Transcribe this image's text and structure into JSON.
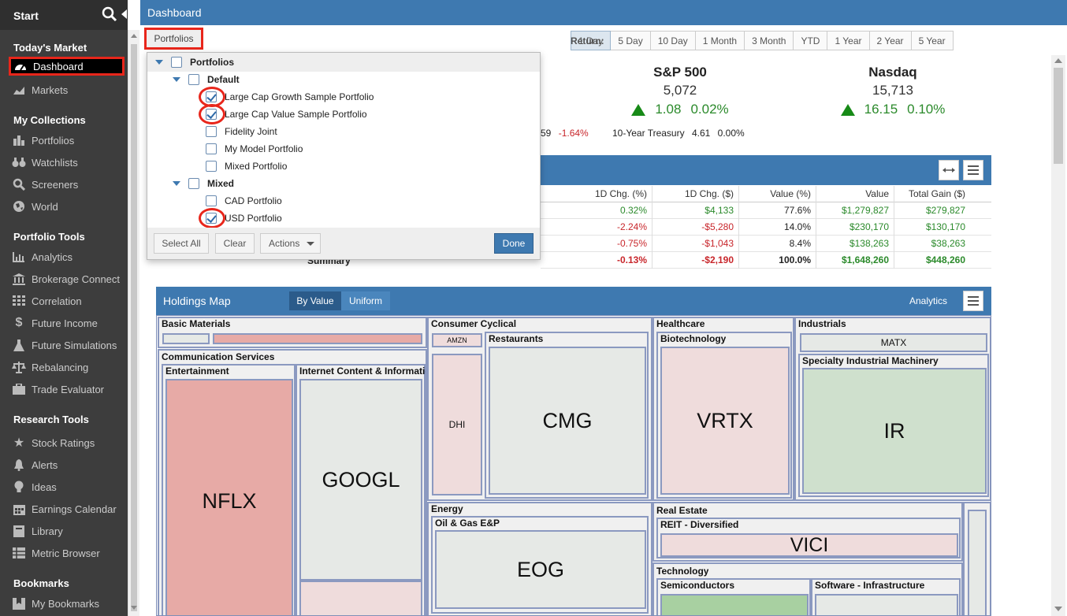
{
  "sidebar": {
    "start_label": "Start",
    "sections": {
      "todays_market": "Today's Market",
      "my_collections": "My Collections",
      "portfolio_tools": "Portfolio Tools",
      "research_tools": "Research Tools",
      "bookmarks": "Bookmarks"
    },
    "items": {
      "dashboard": "Dashboard",
      "markets": "Markets",
      "portfolios": "Portfolios",
      "watchlists": "Watchlists",
      "screeners": "Screeners",
      "world": "World",
      "analytics": "Analytics",
      "brokerage": "Brokerage Connect",
      "correlation": "Correlation",
      "future_income": "Future Income",
      "future_sim": "Future Simulations",
      "rebalancing": "Rebalancing",
      "trade_eval": "Trade Evaluator",
      "stock_ratings": "Stock Ratings",
      "alerts": "Alerts",
      "ideas": "Ideas",
      "earnings": "Earnings Calendar",
      "library": "Library",
      "metric_browser": "Metric Browser",
      "my_bookmarks": "My Bookmarks"
    }
  },
  "header": {
    "title": "Dashboard"
  },
  "toolbar": {
    "portfolios_label": "Portfolios",
    "return_label": "Return:",
    "periods": [
      "1 Day",
      "5 Day",
      "10 Day",
      "1 Month",
      "3 Month",
      "YTD",
      "1 Year",
      "2 Year",
      "5 Year"
    ],
    "selected_period": "1 Day"
  },
  "indices": {
    "sp500": {
      "name": "S&P 500",
      "value": "5,072",
      "change": "1.08",
      "pct": "0.02%"
    },
    "nasdaq": {
      "name": "Nasdaq",
      "value": "15,713",
      "change": "16.15",
      "pct": "0.10%"
    }
  },
  "ticker_row": {
    "partial_value": "59",
    "partial_pct": "-1.64%",
    "treasury_name": "10-Year Treasury",
    "treasury_value": "4.61",
    "treasury_pct": "0.00%"
  },
  "table": {
    "headers": [
      "1D Chg. (%)",
      "1D Chg. ($)",
      "Value (%)",
      "Value",
      "Total Gain ($)"
    ],
    "rows": [
      [
        "0.32%",
        "$4,133",
        "77.6%",
        "$1,279,827",
        "$279,827"
      ],
      [
        "-2.24%",
        "-$5,280",
        "14.0%",
        "$230,170",
        "$130,170"
      ],
      [
        "-0.75%",
        "-$1,043",
        "8.4%",
        "$138,263",
        "$38,263"
      ]
    ],
    "summary_label": "Summary",
    "summary": [
      "-0.13%",
      "-$2,190",
      "100.0%",
      "$1,648,260",
      "$448,260"
    ]
  },
  "dropdown": {
    "root": "Portfolios",
    "group_default": "Default",
    "group_mixed": "Mixed",
    "items": {
      "lcg": "Large Cap Growth Sample Portfolio",
      "lcv": "Large Cap Value Sample Portfolio",
      "fidelity": "Fidelity Joint",
      "model": "My Model Portfolio",
      "mixed": "Mixed Portfolio",
      "cad": "CAD Portfolio",
      "usd": "USD Portfolio"
    },
    "select_all": "Select All",
    "clear": "Clear",
    "actions": "Actions",
    "done": "Done"
  },
  "holdings_map": {
    "title": "Holdings Map",
    "by_value": "By Value",
    "uniform": "Uniform",
    "analytics": "Analytics",
    "sectors": {
      "basic_materials": "Basic Materials",
      "communication": "Communication Services",
      "entertainment": "Entertainment",
      "internet": "Internet Content & Information",
      "consumer_cyclical": "Consumer Cyclical",
      "restaurants": "Restaurants",
      "healthcare": "Healthcare",
      "biotech": "Biotechnology",
      "industrials": "Industrials",
      "specialty": "Specialty Industrial Machinery",
      "energy": "Energy",
      "oil_gas": "Oil & Gas E&P",
      "real_estate": "Real Estate",
      "reit": "REIT - Diversified",
      "technology": "Technology",
      "semis": "Semiconductors",
      "software": "Software - Infrastructure"
    },
    "tickers": {
      "nflx": "NFLX",
      "googl": "GOOGL",
      "amzn": "AMZN",
      "dhi": "DHI",
      "cmg": "CMG",
      "vrtx": "VRTX",
      "matx": "MATX",
      "ir": "IR",
      "eog": "EOG",
      "vici": "VICI"
    },
    "colors": {
      "down": "#e7aaa6",
      "down_light": "#efdcdc",
      "flat": "#e6e9e6",
      "up": "#cfe0cd",
      "up_strong": "#a8d0a1"
    }
  }
}
